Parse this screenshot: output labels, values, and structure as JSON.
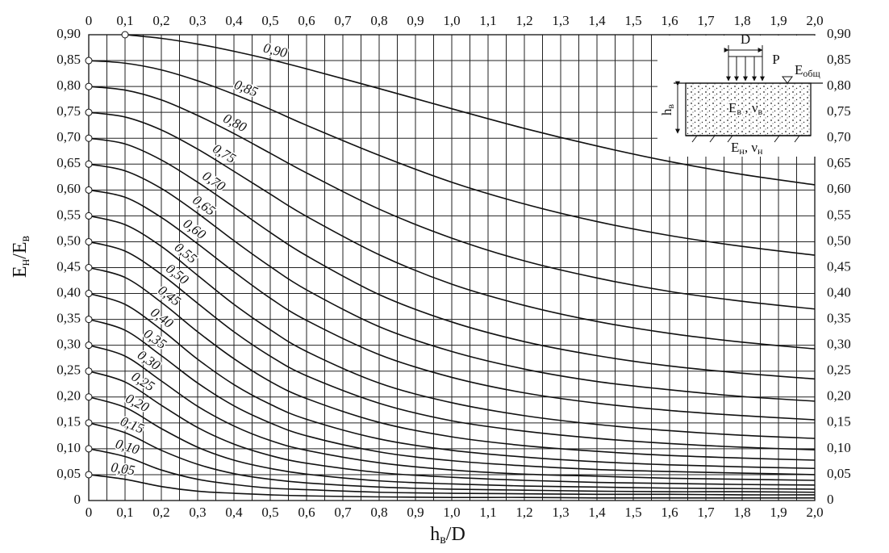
{
  "chart_data": {
    "type": "line",
    "x_label": [
      "h",
      "в",
      "/D"
    ],
    "y_label": [
      "E",
      "н",
      "/E",
      "в"
    ],
    "xlim": [
      0,
      2.0
    ],
    "ylim": [
      0,
      0.9
    ],
    "xticks": [
      0,
      {
        "value": 0.1,
        "label": "0,1"
      },
      {
        "value": 0.2,
        "label": "0,2"
      },
      {
        "value": 0.3,
        "label": "0,3"
      },
      {
        "value": 0.4,
        "label": "0,4"
      },
      {
        "value": 0.5,
        "label": "0,5"
      },
      {
        "value": 0.6,
        "label": "0,6"
      },
      {
        "value": 0.7,
        "label": "0,7"
      },
      {
        "value": 0.8,
        "label": "0,8"
      },
      {
        "value": 0.9,
        "label": "0,9"
      },
      {
        "value": 1.0,
        "label": "1,0"
      },
      {
        "value": 1.1,
        "label": "1,1"
      },
      {
        "value": 1.2,
        "label": "1,2"
      },
      {
        "value": 1.3,
        "label": "1,3"
      },
      {
        "value": 1.4,
        "label": "1,4"
      },
      {
        "value": 1.5,
        "label": "1,5"
      },
      {
        "value": 1.6,
        "label": "1,6"
      },
      {
        "value": 1.7,
        "label": "1,7"
      },
      {
        "value": 1.8,
        "label": "1,8"
      },
      {
        "value": 1.9,
        "label": "1,9"
      },
      {
        "value": 2.0,
        "label": "2,0"
      }
    ],
    "yticks": [
      0,
      {
        "value": 0.05,
        "label": "0,05"
      },
      {
        "value": 0.1,
        "label": "0,10"
      },
      {
        "value": 0.15,
        "label": "0,15"
      },
      {
        "value": 0.2,
        "label": "0,20"
      },
      {
        "value": 0.25,
        "label": "0,25"
      },
      {
        "value": 0.3,
        "label": "0,30"
      },
      {
        "value": 0.35,
        "label": "0,35"
      },
      {
        "value": 0.4,
        "label": "0,40"
      },
      {
        "value": 0.45,
        "label": "0,45"
      },
      {
        "value": 0.5,
        "label": "0,50"
      },
      {
        "value": 0.55,
        "label": "0,55"
      },
      {
        "value": 0.6,
        "label": "0,60"
      },
      {
        "value": 0.65,
        "label": "0,65"
      },
      {
        "value": 0.7,
        "label": "0,70"
      },
      {
        "value": 0.75,
        "label": "0,75"
      },
      {
        "value": 0.8,
        "label": "0,80"
      },
      {
        "value": 0.85,
        "label": "0,85"
      },
      {
        "value": 0.9,
        "label": "0,90"
      }
    ],
    "grid": true,
    "minor_x_grid": true,
    "x": [
      0,
      0.1,
      0.2,
      0.3,
      0.4,
      0.5,
      0.6,
      0.8,
      1.0,
      1.2,
      1.4,
      1.6,
      1.8,
      2.0
    ],
    "series": [
      {
        "name": "0,05",
        "color": "#111",
        "values": [
          0.05,
          0.041,
          0.027,
          0.018,
          0.014,
          0.011,
          0.009,
          0.007,
          0.006,
          0.006,
          0.005,
          0.005,
          0.005,
          0.005
        ]
      },
      {
        "name": "0,10",
        "color": "#111",
        "values": [
          0.1,
          0.085,
          0.059,
          0.041,
          0.031,
          0.024,
          0.021,
          0.016,
          0.014,
          0.013,
          0.012,
          0.012,
          0.011,
          0.011
        ]
      },
      {
        "name": "0,15",
        "color": "#111",
        "values": [
          0.15,
          0.131,
          0.097,
          0.07,
          0.052,
          0.041,
          0.034,
          0.026,
          0.022,
          0.02,
          0.018,
          0.017,
          0.017,
          0.016
        ]
      },
      {
        "name": "0,20",
        "color": "#111",
        "values": [
          0.2,
          0.18,
          0.139,
          0.103,
          0.078,
          0.062,
          0.051,
          0.038,
          0.032,
          0.028,
          0.026,
          0.024,
          0.023,
          0.022
        ]
      },
      {
        "name": "0,25",
        "color": "#111",
        "values": [
          0.25,
          0.229,
          0.184,
          0.141,
          0.109,
          0.087,
          0.072,
          0.054,
          0.045,
          0.039,
          0.035,
          0.033,
          0.031,
          0.03
        ]
      },
      {
        "name": "0,30",
        "color": "#111",
        "values": [
          0.3,
          0.279,
          0.231,
          0.182,
          0.144,
          0.116,
          0.097,
          0.073,
          0.059,
          0.051,
          0.047,
          0.043,
          0.041,
          0.039
        ]
      },
      {
        "name": "0,35",
        "color": "#111",
        "values": [
          0.35,
          0.329,
          0.28,
          0.227,
          0.183,
          0.15,
          0.125,
          0.094,
          0.077,
          0.067,
          0.06,
          0.056,
          0.053,
          0.05
        ]
      },
      {
        "name": "0,40",
        "color": "#111",
        "values": [
          0.4,
          0.379,
          0.33,
          0.273,
          0.224,
          0.186,
          0.157,
          0.119,
          0.097,
          0.084,
          0.075,
          0.069,
          0.065,
          0.062
        ]
      },
      {
        "name": "0,45",
        "color": "#111",
        "values": [
          0.45,
          0.431,
          0.383,
          0.326,
          0.274,
          0.23,
          0.197,
          0.151,
          0.123,
          0.106,
          0.095,
          0.087,
          0.082,
          0.078
        ]
      },
      {
        "name": "0,50",
        "color": "#111",
        "values": [
          0.5,
          0.482,
          0.437,
          0.381,
          0.326,
          0.279,
          0.241,
          0.188,
          0.154,
          0.134,
          0.12,
          0.11,
          0.103,
          0.098
        ]
      },
      {
        "name": "0,55",
        "color": "#111",
        "values": [
          0.55,
          0.533,
          0.491,
          0.435,
          0.379,
          0.33,
          0.288,
          0.227,
          0.189,
          0.164,
          0.147,
          0.135,
          0.126,
          0.12
        ]
      },
      {
        "name": "0,60",
        "color": "#111",
        "values": [
          0.6,
          0.586,
          0.547,
          0.496,
          0.442,
          0.391,
          0.348,
          0.282,
          0.238,
          0.208,
          0.188,
          0.174,
          0.164,
          0.156
        ]
      },
      {
        "name": "0,65",
        "color": "#111",
        "values": [
          0.65,
          0.637,
          0.603,
          0.555,
          0.502,
          0.452,
          0.407,
          0.336,
          0.288,
          0.254,
          0.23,
          0.214,
          0.201,
          0.192
        ]
      },
      {
        "name": "0,70",
        "color": "#111",
        "values": [
          0.7,
          0.689,
          0.658,
          0.615,
          0.567,
          0.518,
          0.473,
          0.398,
          0.345,
          0.307,
          0.28,
          0.26,
          0.246,
          0.235
        ]
      },
      {
        "name": "0,75",
        "color": "#111",
        "values": [
          0.75,
          0.741,
          0.716,
          0.679,
          0.636,
          0.592,
          0.549,
          0.475,
          0.418,
          0.377,
          0.346,
          0.323,
          0.306,
          0.293
        ]
      },
      {
        "name": "0,80",
        "color": "#111",
        "values": [
          0.8,
          0.793,
          0.774,
          0.744,
          0.709,
          0.671,
          0.633,
          0.563,
          0.507,
          0.463,
          0.43,
          0.404,
          0.385,
          0.37
        ]
      },
      {
        "name": "0,85",
        "color": "#111",
        "values": [
          0.85,
          0.845,
          0.832,
          0.811,
          0.785,
          0.756,
          0.725,
          0.667,
          0.615,
          0.573,
          0.539,
          0.512,
          0.491,
          0.474
        ]
      },
      {
        "name": "0,90",
        "color": "#111",
        "values": [
          null,
          0.9,
          0.893,
          0.882,
          0.868,
          0.852,
          0.834,
          0.796,
          0.757,
          0.719,
          0.685,
          0.655,
          0.63,
          0.61
        ]
      }
    ],
    "inset": {
      "width_label": "D",
      "load_label": "P",
      "total_modulus": [
        "E",
        "общ"
      ],
      "layer_thickness": [
        "h",
        "в"
      ],
      "upper_layer": [
        "E",
        "в",
        " , ν",
        "в"
      ],
      "lower_layer": [
        "E",
        "н",
        ", ν",
        "н"
      ]
    }
  }
}
